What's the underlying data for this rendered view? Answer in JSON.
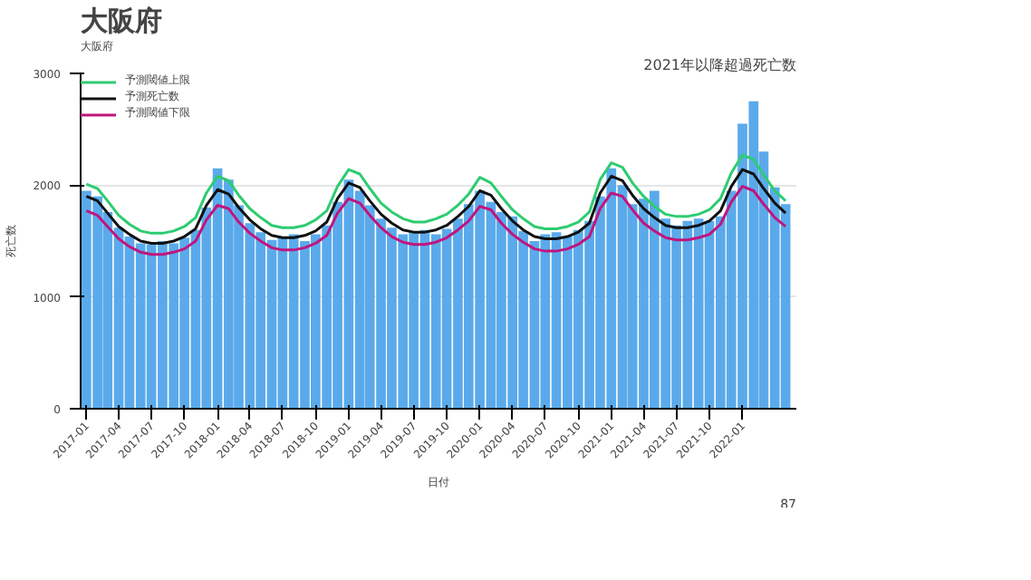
{
  "chart_data": {
    "type": "bar",
    "title": "大阪府",
    "xlabel": "日付",
    "ylabel": "死亡数",
    "annotations": [
      "2021年以降超過死亡数",
      "大阪府",
      "87"
    ],
    "x": [
      "2017-01",
      "2017-02",
      "2017-03",
      "2017-04",
      "2017-05",
      "2017-06",
      "2017-07",
      "2017-08",
      "2017-09",
      "2017-10",
      "2017-11",
      "2017-12",
      "2018-01",
      "2018-02",
      "2018-03",
      "2018-04",
      "2018-05",
      "2018-06",
      "2018-07",
      "2018-08",
      "2018-09",
      "2018-10",
      "2018-11",
      "2018-12",
      "2019-01",
      "2019-02",
      "2019-03",
      "2019-04",
      "2019-05",
      "2019-06",
      "2019-07",
      "2019-08",
      "2019-09",
      "2019-10",
      "2019-11",
      "2019-12",
      "2020-01",
      "2020-02",
      "2020-03",
      "2020-04",
      "2020-05",
      "2020-06",
      "2020-07",
      "2020-08",
      "2020-09",
      "2020-10",
      "2020-11",
      "2020-12",
      "2021-01",
      "2021-02",
      "2021-03",
      "2021-04",
      "2021-05",
      "2021-06",
      "2021-07",
      "2021-08",
      "2021-09",
      "2021-10",
      "2021-11",
      "2021-12",
      "2022-01",
      "2022-02",
      "2022-03",
      "2022-04",
      "2022-05"
    ],
    "series": [
      {
        "color": "#5aaaeb",
        "values": [
          1950,
          1900,
          1760,
          1620,
          1540,
          1480,
          1470,
          1500,
          1480,
          1530,
          1600,
          1800,
          2150,
          2050,
          1820,
          1660,
          1580,
          1510,
          1540,
          1560,
          1500,
          1560,
          1640,
          1850,
          2050,
          1950,
          1820,
          1700,
          1620,
          1560,
          1580,
          1600,
          1560,
          1610,
          1700,
          1830,
          1950,
          1850,
          1760,
          1720,
          1590,
          1500,
          1560,
          1580,
          1540,
          1600,
          1680,
          1900,
          2150,
          2000,
          1830,
          1880,
          1950,
          1700,
          1640,
          1680,
          1700,
          1680,
          1720,
          1950,
          2550,
          2750,
          2300,
          1980,
          1830
        ]
      },
      {
        "type": "line",
        "name": "予測閾値上限",
        "color": "#2ecc71",
        "values": [
          2010,
          1970,
          1860,
          1730,
          1650,
          1590,
          1570,
          1570,
          1590,
          1630,
          1710,
          1930,
          2080,
          2040,
          1910,
          1790,
          1710,
          1640,
          1620,
          1620,
          1640,
          1690,
          1770,
          1990,
          2140,
          2100,
          1970,
          1840,
          1760,
          1700,
          1670,
          1670,
          1700,
          1740,
          1820,
          1920,
          2070,
          2020,
          1900,
          1780,
          1700,
          1630,
          1610,
          1610,
          1630,
          1670,
          1760,
          2050,
          2200,
          2160,
          2020,
          1900,
          1810,
          1740,
          1720,
          1720,
          1740,
          1780,
          1880,
          2110,
          2270,
          2230,
          2090,
          1950,
          1860
        ]
      },
      {
        "type": "line",
        "name": "予測死亡数",
        "color": "#111111",
        "values": [
          1900,
          1860,
          1750,
          1630,
          1560,
          1500,
          1480,
          1480,
          1500,
          1540,
          1610,
          1820,
          1960,
          1920,
          1800,
          1690,
          1610,
          1550,
          1530,
          1530,
          1550,
          1590,
          1670,
          1880,
          2020,
          1980,
          1860,
          1740,
          1660,
          1600,
          1580,
          1580,
          1600,
          1640,
          1720,
          1810,
          1950,
          1910,
          1790,
          1680,
          1600,
          1540,
          1520,
          1520,
          1540,
          1580,
          1660,
          1930,
          2080,
          2040,
          1910,
          1790,
          1710,
          1640,
          1620,
          1620,
          1640,
          1680,
          1770,
          1990,
          2140,
          2100,
          1970,
          1840,
          1750
        ]
      },
      {
        "type": "line",
        "name": "予測閾値下限",
        "color": "#c0157d",
        "values": [
          1770,
          1730,
          1630,
          1520,
          1450,
          1400,
          1380,
          1380,
          1400,
          1430,
          1500,
          1690,
          1820,
          1790,
          1670,
          1570,
          1500,
          1440,
          1420,
          1420,
          1440,
          1480,
          1550,
          1750,
          1880,
          1840,
          1730,
          1620,
          1540,
          1490,
          1470,
          1470,
          1490,
          1530,
          1600,
          1680,
          1810,
          1780,
          1660,
          1560,
          1490,
          1430,
          1410,
          1410,
          1430,
          1470,
          1540,
          1790,
          1930,
          1900,
          1780,
          1660,
          1590,
          1530,
          1510,
          1510,
          1530,
          1560,
          1650,
          1850,
          1990,
          1950,
          1830,
          1710,
          1630
        ]
      }
    ],
    "xlim": [
      "2016-12-16",
      "2022-05-31"
    ],
    "xticks": [
      "2017-01",
      "2017-04",
      "2017-07",
      "2017-10",
      "2018-01",
      "2018-04",
      "2018-07",
      "2018-10",
      "2019-01",
      "2019-04",
      "2019-07",
      "2019-10",
      "2020-01",
      "2020-04",
      "2020-07",
      "2020-10",
      "2021-01",
      "2021-04",
      "2021-07",
      "2021-10",
      "2022-01"
    ],
    "ylim": [
      0,
      3000
    ],
    "yticks": [
      0,
      1000,
      2000,
      3000
    ],
    "grid": "y",
    "legend": "top"
  }
}
